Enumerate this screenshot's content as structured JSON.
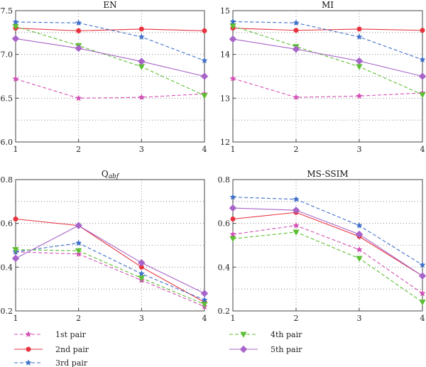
{
  "chart_data": [
    {
      "type": "line",
      "title": "EN",
      "x": [
        1,
        2,
        3,
        4
      ],
      "xlim": [
        1,
        4
      ],
      "ylim": [
        6.0,
        7.5
      ],
      "yticks": [
        "6.0",
        "6.5",
        "7.0",
        "7.5"
      ],
      "grid": true,
      "series": [
        {
          "name": "1st pair",
          "values": [
            6.72,
            6.5,
            6.51,
            6.55
          ]
        },
        {
          "name": "2nd pair",
          "values": [
            7.3,
            7.27,
            7.29,
            7.27
          ]
        },
        {
          "name": "3rd pair",
          "values": [
            7.37,
            7.36,
            7.2,
            6.93
          ]
        },
        {
          "name": "4th pair",
          "values": [
            7.32,
            7.1,
            6.86,
            6.53
          ]
        },
        {
          "name": "5th pair",
          "values": [
            7.18,
            7.07,
            6.92,
            6.75
          ]
        }
      ]
    },
    {
      "type": "line",
      "title": "MI",
      "x": [
        1,
        2,
        3,
        4
      ],
      "xlim": [
        1,
        4
      ],
      "ylim": [
        12,
        15
      ],
      "yticks": [
        "12",
        "13",
        "14",
        "15"
      ],
      "grid": true,
      "series": [
        {
          "name": "1st pair",
          "values": [
            13.45,
            13.02,
            13.05,
            13.12
          ]
        },
        {
          "name": "2nd pair",
          "values": [
            14.6,
            14.55,
            14.58,
            14.55
          ]
        },
        {
          "name": "3rd pair",
          "values": [
            14.75,
            14.72,
            14.4,
            13.88
          ]
        },
        {
          "name": "4th pair",
          "values": [
            14.65,
            14.18,
            13.72,
            13.08
          ]
        },
        {
          "name": "5th pair",
          "values": [
            14.35,
            14.12,
            13.85,
            13.5
          ]
        }
      ]
    },
    {
      "type": "line",
      "title": "Q",
      "title_sub": "abf",
      "x": [
        1,
        2,
        3,
        4
      ],
      "xlim": [
        1,
        4
      ],
      "ylim": [
        0.2,
        0.8
      ],
      "yticks": [
        "0.2",
        "0.4",
        "0.6",
        "0.8"
      ],
      "grid": true,
      "series": [
        {
          "name": "1st pair",
          "values": [
            0.47,
            0.46,
            0.34,
            0.22
          ]
        },
        {
          "name": "2nd pair",
          "values": [
            0.62,
            0.59,
            0.4,
            0.24
          ]
        },
        {
          "name": "3rd pair",
          "values": [
            0.47,
            0.51,
            0.37,
            0.25
          ]
        },
        {
          "name": "4th pair",
          "values": [
            0.48,
            0.475,
            0.35,
            0.23
          ]
        },
        {
          "name": "5th pair",
          "values": [
            0.44,
            0.59,
            0.42,
            0.28
          ]
        }
      ]
    },
    {
      "type": "line",
      "title": "MS-SSIM",
      "x": [
        1,
        2,
        3,
        4
      ],
      "xlim": [
        1,
        4
      ],
      "ylim": [
        0.2,
        0.8
      ],
      "yticks": [
        "0.2",
        "0.4",
        "0.6",
        "0.8"
      ],
      "grid": true,
      "series": [
        {
          "name": "1st pair",
          "values": [
            0.55,
            0.59,
            0.48,
            0.28
          ]
        },
        {
          "name": "2nd pair",
          "values": [
            0.62,
            0.65,
            0.54,
            0.36
          ]
        },
        {
          "name": "3rd pair",
          "values": [
            0.72,
            0.71,
            0.59,
            0.41
          ]
        },
        {
          "name": "4th pair",
          "values": [
            0.53,
            0.56,
            0.44,
            0.24
          ]
        },
        {
          "name": "5th pair",
          "values": [
            0.67,
            0.66,
            0.55,
            0.36
          ]
        }
      ]
    }
  ],
  "legend": {
    "placement": "bottom",
    "items": [
      {
        "label": "1st pair",
        "color": "#d34fb5",
        "marker": "star",
        "dash": true
      },
      {
        "label": "2nd pair",
        "color": "#e8333f",
        "marker": "circle",
        "dash": false
      },
      {
        "label": "3rd pair",
        "color": "#3f6fc9",
        "marker": "star",
        "dash": true
      },
      {
        "label": "4th pair",
        "color": "#5dbe33",
        "marker": "triangle-down",
        "dash": true
      },
      {
        "label": "5th pair",
        "color": "#a865c9",
        "marker": "diamond",
        "dash": false
      }
    ]
  }
}
